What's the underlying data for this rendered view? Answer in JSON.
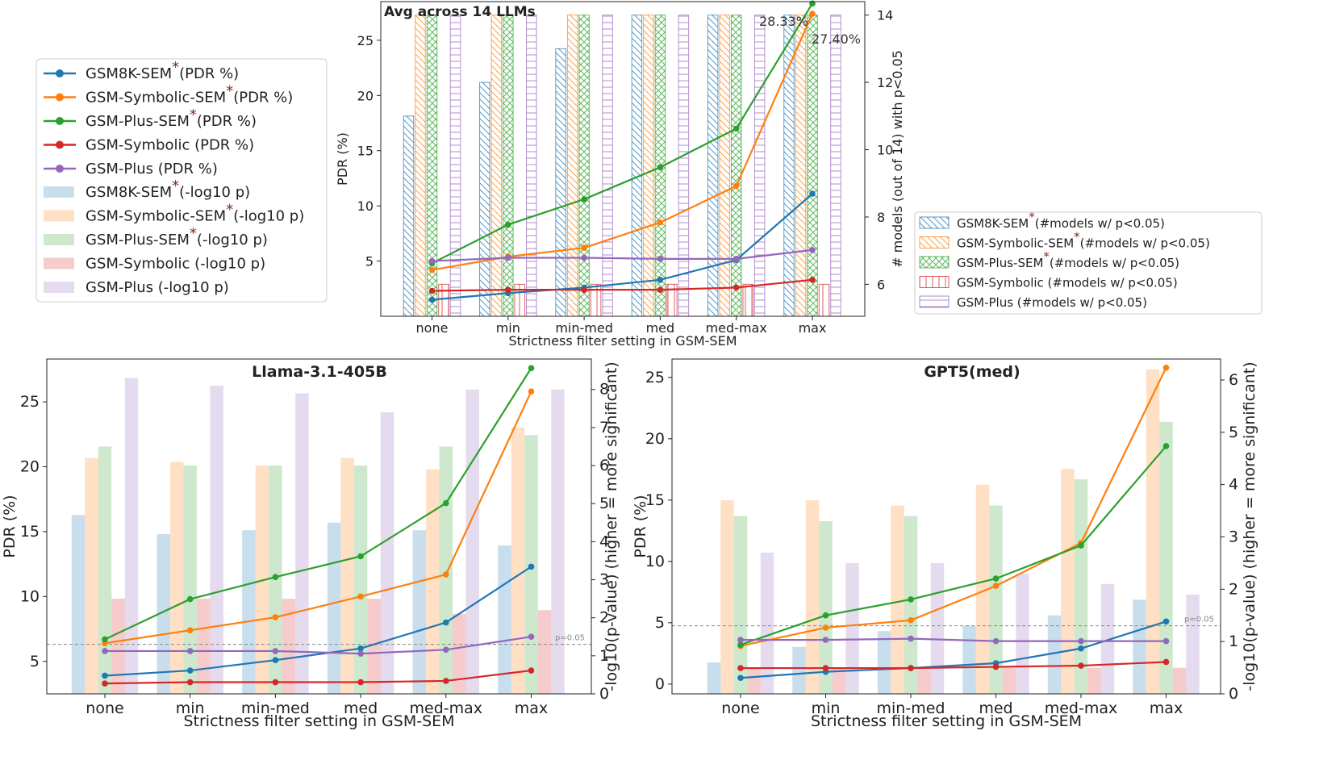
{
  "colors": {
    "GSM8K-SEM": "#1f77b4",
    "GSM-Symbolic-SEM": "#ff7f0e",
    "GSM-Plus-SEM": "#2ca02c",
    "GSM-Symbolic": "#d62728",
    "GSM-Plus": "#9467bd",
    "star": "#7b2d12",
    "ref_line": "#888888"
  },
  "series_names": [
    "GSM8K-SEM",
    "GSM-Symbolic-SEM",
    "GSM-Plus-SEM",
    "GSM-Symbolic",
    "GSM-Plus"
  ],
  "legend_main": {
    "lines": [
      {
        "pre": "GSM8K-SEM",
        "star": true,
        "post": "(PDR %)"
      },
      {
        "pre": "GSM-Symbolic-SEM",
        "star": true,
        "post": "(PDR %)"
      },
      {
        "pre": "GSM-Plus-SEM",
        "star": true,
        "post": "(PDR %)"
      },
      {
        "pre": "GSM-Symbolic (PDR %)",
        "star": false,
        "post": ""
      },
      {
        "pre": "GSM-Plus (PDR %)",
        "star": false,
        "post": ""
      }
    ],
    "bars": [
      {
        "pre": "GSM8K-SEM",
        "star": true,
        "post": "(-log10 p)"
      },
      {
        "pre": "GSM-Symbolic-SEM",
        "star": true,
        "post": "(-log10 p)"
      },
      {
        "pre": "GSM-Plus-SEM",
        "star": true,
        "post": "(-log10 p)"
      },
      {
        "pre": "GSM-Symbolic (-log10 p)",
        "star": false,
        "post": ""
      },
      {
        "pre": "GSM-Plus (-log10 p)",
        "star": false,
        "post": ""
      }
    ]
  },
  "legend_hatch": [
    {
      "pre": "GSM8K-SEM",
      "star": true,
      "post": "(#models w/ p<0.05)"
    },
    {
      "pre": "GSM-Symbolic-SEM",
      "star": true,
      "post": "(#models w/ p<0.05)"
    },
    {
      "pre": "GSM-Plus-SEM",
      "star": true,
      "post": "(#models w/ p<0.05)"
    },
    {
      "pre": "GSM-Symbolic (#models w/ p<0.05)",
      "star": false,
      "post": ""
    },
    {
      "pre": "GSM-Plus (#models w/ p<0.05)",
      "star": false,
      "post": ""
    }
  ],
  "chart_data": [
    {
      "id": "top",
      "type": "bar+line",
      "title": "Avg across 14 LLMs",
      "categories": [
        "none",
        "min",
        "min-med",
        "med",
        "med-max",
        "max"
      ],
      "xlabel": "Strictness filter setting in GSM-SEM",
      "ylabel": "PDR (%)",
      "ylabel_right": "# models (out of 14) with p<0.05",
      "ylim": [
        0,
        28.5
      ],
      "ylim_right": [
        5.05,
        14.4
      ],
      "yticks": [
        5,
        10,
        15,
        20,
        25
      ],
      "yticks_right": [
        6,
        8,
        10,
        12,
        14
      ],
      "lines": [
        {
          "name": "GSM8K-SEM",
          "values": [
            1.5,
            2.1,
            2.6,
            3.3,
            5.1,
            11.1
          ]
        },
        {
          "name": "GSM-Symbolic-SEM",
          "values": [
            4.2,
            5.4,
            6.2,
            8.5,
            11.8,
            27.4
          ]
        },
        {
          "name": "GSM-Plus-SEM",
          "values": [
            4.8,
            8.3,
            10.6,
            13.5,
            17.0,
            28.33
          ]
        },
        {
          "name": "GSM-Symbolic",
          "values": [
            2.3,
            2.4,
            2.4,
            2.4,
            2.6,
            3.3
          ]
        },
        {
          "name": "GSM-Plus",
          "values": [
            5.0,
            5.3,
            5.3,
            5.2,
            5.2,
            6.0
          ]
        }
      ],
      "bars": [
        {
          "name": "GSM8K-SEM",
          "values": [
            11,
            12,
            13,
            14,
            14,
            14
          ]
        },
        {
          "name": "GSM-Symbolic-SEM",
          "values": [
            14,
            14,
            14,
            14,
            14,
            14
          ]
        },
        {
          "name": "GSM-Plus-SEM",
          "values": [
            14,
            14,
            14,
            14,
            14,
            14
          ]
        },
        {
          "name": "GSM-Symbolic",
          "values": [
            6,
            6,
            6,
            6,
            6,
            6
          ]
        },
        {
          "name": "GSM-Plus",
          "values": [
            14,
            14,
            14,
            14,
            14,
            14
          ]
        }
      ],
      "annotations": [
        "28.33%",
        "27.40%"
      ]
    },
    {
      "id": "llama",
      "type": "bar+line",
      "title": "Llama-3.1-405B",
      "categories": [
        "none",
        "min",
        "min-med",
        "med",
        "med-max",
        "max"
      ],
      "xlabel": "Strictness filter setting in GSM-SEM",
      "ylabel": "PDR (%)",
      "ylabel_right": "-log10(p-value)  (higher = more significant)",
      "ylim": [
        2.5,
        28.3
      ],
      "ylim_right": [
        0,
        8.8
      ],
      "yticks": [
        5,
        10,
        15,
        20,
        25
      ],
      "yticks_right": [
        0,
        1,
        2,
        3,
        4,
        5,
        6,
        7,
        8
      ],
      "lines": [
        {
          "name": "GSM8K-SEM",
          "values": [
            3.9,
            4.3,
            5.1,
            6.0,
            8.0,
            12.3
          ]
        },
        {
          "name": "GSM-Symbolic-SEM",
          "values": [
            6.4,
            7.4,
            8.4,
            10.0,
            11.7,
            25.8
          ]
        },
        {
          "name": "GSM-Plus-SEM",
          "values": [
            6.7,
            9.8,
            11.5,
            13.1,
            17.2,
            27.6
          ]
        },
        {
          "name": "GSM-Symbolic",
          "values": [
            3.3,
            3.4,
            3.4,
            3.4,
            3.5,
            4.3
          ]
        },
        {
          "name": "GSM-Plus",
          "values": [
            5.8,
            5.8,
            5.8,
            5.6,
            5.9,
            6.9
          ]
        }
      ],
      "bars": [
        {
          "name": "GSM8K-SEM",
          "values": [
            4.7,
            4.2,
            4.3,
            4.5,
            4.3,
            3.9
          ]
        },
        {
          "name": "GSM-Symbolic-SEM",
          "values": [
            6.2,
            6.1,
            6.0,
            6.2,
            5.9,
            7.0
          ]
        },
        {
          "name": "GSM-Plus-SEM",
          "values": [
            6.5,
            6.0,
            6.0,
            6.0,
            6.5,
            6.8
          ]
        },
        {
          "name": "GSM-Symbolic",
          "values": [
            2.5,
            2.5,
            2.5,
            2.5,
            2.1,
            2.2
          ]
        },
        {
          "name": "GSM-Plus",
          "values": [
            8.3,
            8.1,
            7.9,
            7.4,
            8.0,
            8.0
          ]
        }
      ],
      "ref_line": {
        "value": 1.301,
        "label": "p=0.05"
      }
    },
    {
      "id": "gpt5",
      "type": "bar+line",
      "title": "GPT5(med)",
      "categories": [
        "none",
        "min",
        "min-med",
        "med",
        "med-max",
        "max"
      ],
      "xlabel": "Strictness filter setting in GSM-SEM",
      "ylabel": "PDR (%)",
      "ylabel_right": "-log10(p-value)  (higher = more significant)",
      "ylim": [
        -0.8,
        26.5
      ],
      "ylim_right": [
        0,
        6.4
      ],
      "yticks": [
        0,
        5,
        10,
        15,
        20,
        25
      ],
      "yticks_right": [
        0,
        1,
        2,
        3,
        4,
        5,
        6
      ],
      "lines": [
        {
          "name": "GSM8K-SEM",
          "values": [
            0.5,
            1.0,
            1.3,
            1.7,
            2.9,
            5.1
          ]
        },
        {
          "name": "GSM-Symbolic-SEM",
          "values": [
            3.1,
            4.6,
            5.2,
            8.0,
            11.5,
            25.8
          ]
        },
        {
          "name": "GSM-Plus-SEM",
          "values": [
            3.2,
            5.6,
            6.9,
            8.6,
            11.3,
            19.4
          ]
        },
        {
          "name": "GSM-Symbolic",
          "values": [
            1.3,
            1.3,
            1.3,
            1.4,
            1.5,
            1.8
          ]
        },
        {
          "name": "GSM-Plus",
          "values": [
            3.6,
            3.6,
            3.7,
            3.5,
            3.5,
            3.5
          ]
        }
      ],
      "bars": [
        {
          "name": "GSM8K-SEM",
          "values": [
            0.6,
            0.9,
            1.2,
            1.3,
            1.5,
            1.8
          ]
        },
        {
          "name": "GSM-Symbolic-SEM",
          "values": [
            3.7,
            3.7,
            3.6,
            4.0,
            4.3,
            6.2
          ]
        },
        {
          "name": "GSM-Plus-SEM",
          "values": [
            3.4,
            3.3,
            3.4,
            3.6,
            4.1,
            5.2
          ]
        },
        {
          "name": "GSM-Symbolic",
          "values": [
            0.5,
            0.5,
            0.5,
            0.5,
            0.5,
            0.5
          ]
        },
        {
          "name": "GSM-Plus",
          "values": [
            2.7,
            2.5,
            2.5,
            2.3,
            2.1,
            1.9
          ]
        }
      ],
      "ref_line": {
        "value": 1.301,
        "label": "p=0.05"
      }
    }
  ]
}
